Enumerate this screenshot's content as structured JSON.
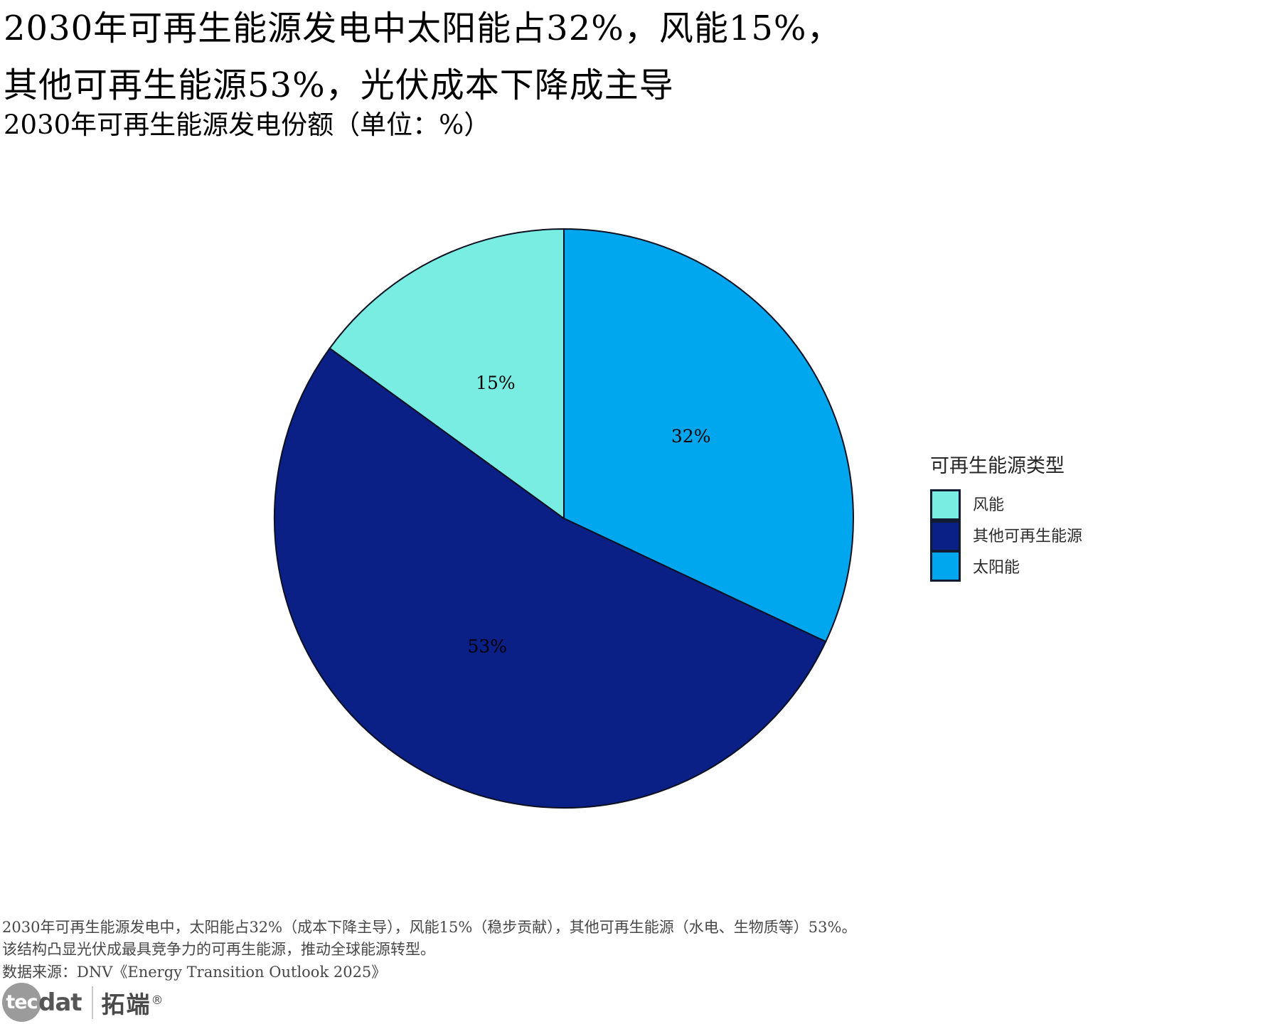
{
  "header": {
    "title_line1": "2030年可再生能源发电中太阳能占32%，风能15%，",
    "title_line2": "其他可再生能源53%，光伏成本下降成主导",
    "subtitle": "2030年可再生能源发电份额（单位：%）"
  },
  "chart_data": {
    "type": "pie",
    "title": "2030年可再生能源发电份额（单位：%）",
    "unit": "%",
    "start_angle_deg": 0,
    "direction": "clockwise",
    "slices": [
      {
        "label": "太阳能",
        "value": 32,
        "color": "#00A6EE"
      },
      {
        "label": "其他可再生能源",
        "value": 53,
        "color": "#0A2086"
      },
      {
        "label": "风能",
        "value": 15,
        "color": "#79EDE2"
      }
    ],
    "outline_color": "#0D1021",
    "label_radius_ratio": 0.52,
    "label_color": "#000000",
    "legend_position": "right"
  },
  "legend": {
    "title": "可再生能源类型",
    "items": [
      {
        "label": "风能",
        "color": "#79EDE2"
      },
      {
        "label": "其他可再生能源",
        "color": "#0A2086"
      },
      {
        "label": "太阳能",
        "color": "#00A6EE"
      }
    ]
  },
  "footer": {
    "line1": "2030年可再生能源发电中，太阳能占32%（成本下降主导），风能15%（稳步贡献），其他可再生能源（水电、生物质等）53%。",
    "line2": "该结构凸显光伏成最具竞争力的可再生能源，推动全球能源转型。",
    "source": "数据来源：DNV《Energy Transition Outlook 2025》"
  },
  "logo": {
    "circle_text": "tec",
    "suffix_text": "dat",
    "brand_text": "拓端",
    "registered_mark": "®"
  }
}
